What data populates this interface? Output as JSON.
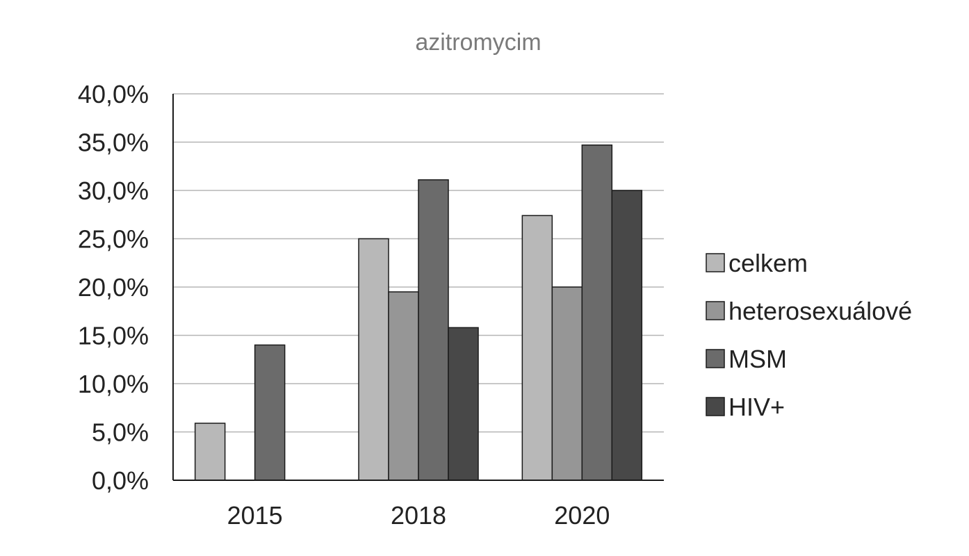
{
  "chart_data": {
    "type": "bar",
    "title": "azitromycim",
    "xlabel": "",
    "ylabel": "",
    "categories": [
      "2015",
      "2018",
      "2020"
    ],
    "series": [
      {
        "name": "celkem",
        "values": [
          5.9,
          25.0,
          27.4
        ],
        "color": "#b8b8b8"
      },
      {
        "name": "heterosexuálové",
        "values": [
          null,
          19.5,
          20.0
        ],
        "color": "#969696"
      },
      {
        "name": "MSM",
        "values": [
          14.0,
          31.1,
          34.7
        ],
        "color": "#6b6b6b"
      },
      {
        "name": "HIV+",
        "values": [
          null,
          15.8,
          30.0
        ],
        "color": "#484848"
      }
    ],
    "ylim": [
      0,
      40
    ],
    "yticks": [
      0,
      5,
      10,
      15,
      20,
      25,
      30,
      35,
      40
    ],
    "ytick_labels": [
      "0,0%",
      "5,0%",
      "10,0%",
      "15,0%",
      "20,0%",
      "25,0%",
      "30,0%",
      "35,0%",
      "40,0%"
    ],
    "grid": true,
    "legend_position": "right"
  }
}
